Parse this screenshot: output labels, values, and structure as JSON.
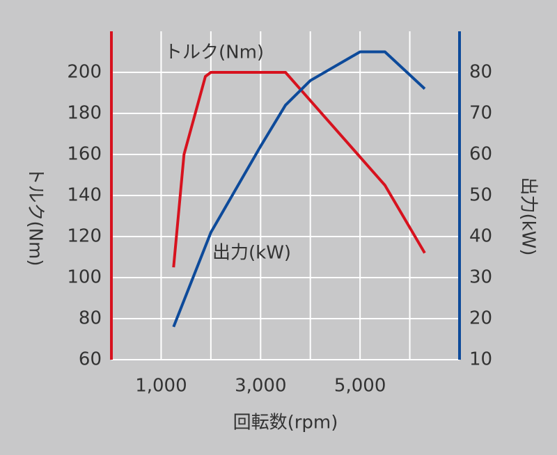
{
  "chart_data": {
    "type": "line",
    "x_label": "回転数(rpm)",
    "y_label": "トルク(Nm)",
    "y2_label": "出力(kW)",
    "xlim": [
      0,
      7000
    ],
    "xticks": [
      {
        "value": 1000,
        "label": "1,000"
      },
      {
        "value": 3000,
        "label": "3,000"
      },
      {
        "value": 5000,
        "label": "5,000"
      }
    ],
    "xminor": [
      2000,
      4000,
      6000
    ],
    "ylim": [
      60,
      220
    ],
    "yticks": [
      60,
      80,
      100,
      120,
      140,
      160,
      180,
      200
    ],
    "y2lim": [
      10,
      90
    ],
    "y2ticks": [
      10,
      20,
      30,
      40,
      50,
      60,
      70,
      80
    ],
    "grid": true,
    "series": [
      {
        "name": "トルク(Nm)",
        "color": "#d7121e",
        "axis": "y",
        "x": [
          1250,
          1460,
          1890,
          2000,
          3500,
          5500,
          6300
        ],
        "values": [
          105,
          160,
          198,
          200,
          200,
          145,
          112
        ]
      },
      {
        "name": "出力(kW)",
        "color": "#0d4a9a",
        "axis": "y2",
        "x": [
          1250,
          2000,
          3000,
          3500,
          4000,
          5000,
          5500,
          6300
        ],
        "values": [
          18,
          41,
          62,
          72,
          78,
          85,
          85,
          76
        ]
      }
    ]
  }
}
